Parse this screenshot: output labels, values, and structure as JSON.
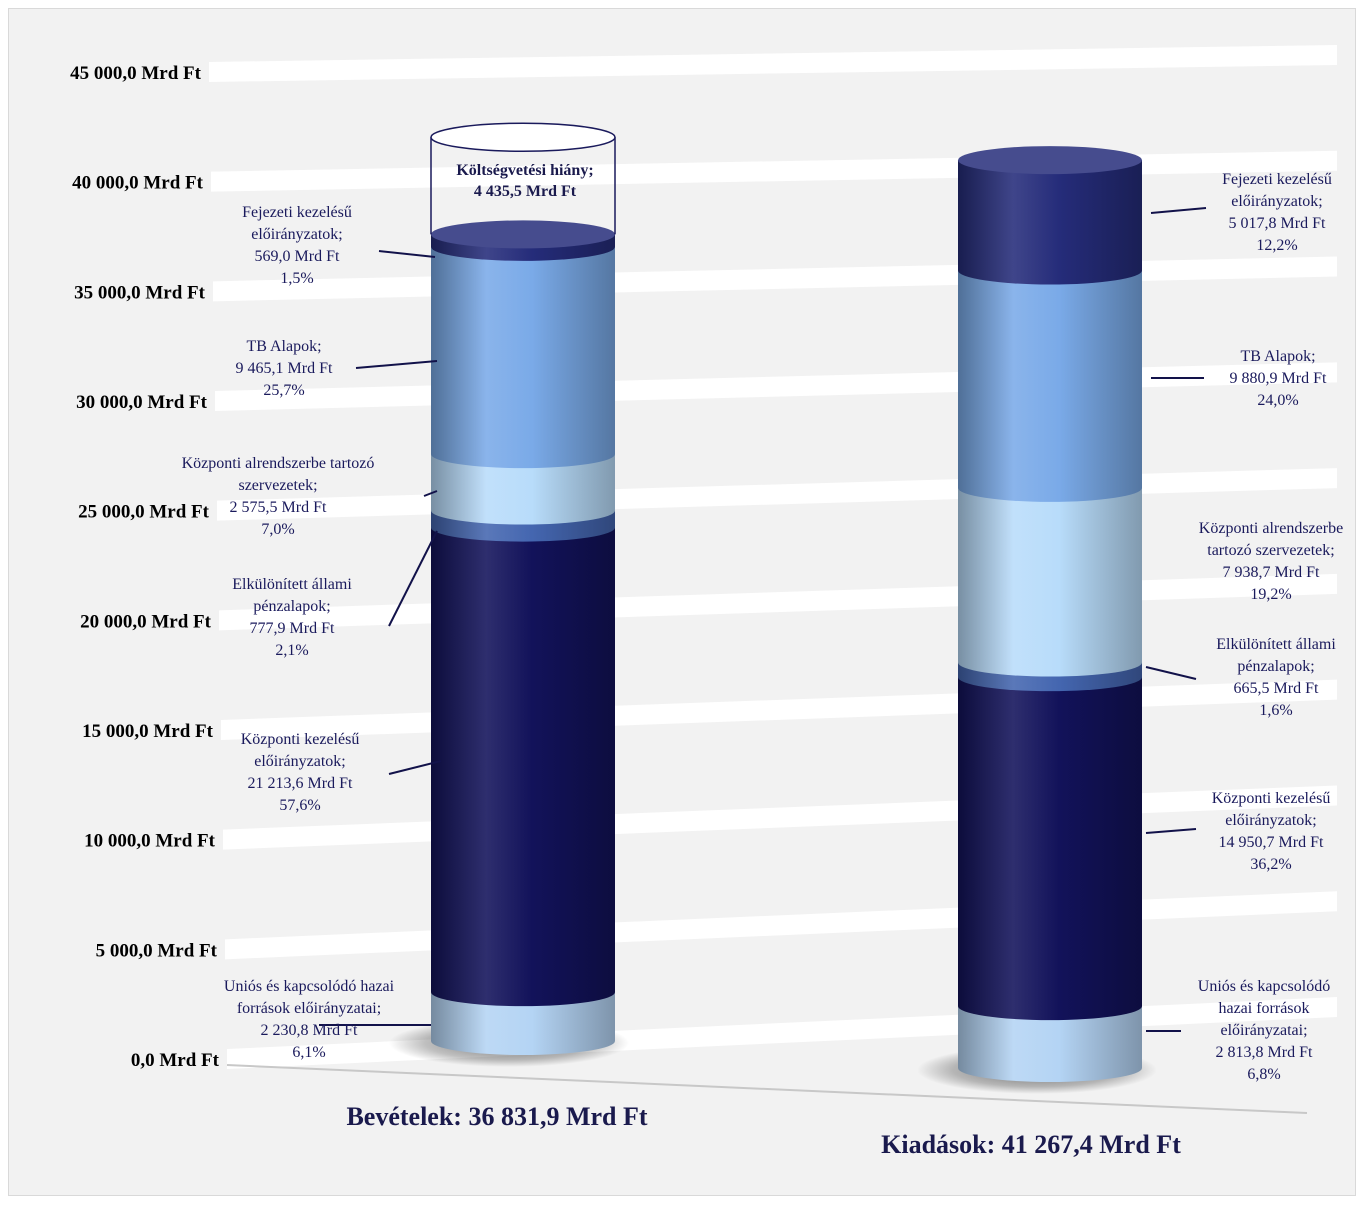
{
  "chart_data": {
    "type": "bar",
    "stacked": true,
    "style": "3d-cylinder",
    "unit": "Mrd Ft",
    "ylim": [
      0,
      45000
    ],
    "yticks": [
      "0,0 Mrd Ft",
      "5 000,0 Mrd Ft",
      "10 000,0 Mrd Ft",
      "15 000,0 Mrd Ft",
      "20 000,0 Mrd Ft",
      "25 000,0 Mrd Ft",
      "30 000,0 Mrd Ft",
      "35 000,0 Mrd Ft",
      "40 000,0 Mrd Ft",
      "45 000,0 Mrd Ft"
    ],
    "grid": true,
    "legend": "none",
    "columns": [
      {
        "title": "Bevételek: 36 831,9 Mrd Ft",
        "total": 36831.9,
        "segments": [
          {
            "label_lines": [
              "Uniós és kapcsolódó hazai",
              "források előirányzatai;",
              "2 230,8 Mrd Ft",
              "6,1%"
            ],
            "value": 2230.8,
            "percent": 6.1,
            "color": "#b4d4f4"
          },
          {
            "label_lines": [
              "Központi kezelésű",
              "előirányzatok;",
              "21 213,6 Mrd Ft",
              "57,6%"
            ],
            "value": 21213.6,
            "percent": 57.6,
            "color": "#12125a"
          },
          {
            "label_lines": [
              "Elkülönített állami",
              "pénzalapok;",
              "777,9 Mrd Ft",
              "2,1%"
            ],
            "value": 777.9,
            "percent": 2.1,
            "color": "#4466b0"
          },
          {
            "label_lines": [
              "Központi alrendszerbe tartozó",
              "szervezetek;",
              "2 575,5 Mrd Ft",
              "7,0%"
            ],
            "value": 2575.5,
            "percent": 7.0,
            "color": "#b8dcfa"
          },
          {
            "label_lines": [
              "TB Alapok;",
              "9 465,1 Mrd Ft",
              "25,7%"
            ],
            "value": 9465.1,
            "percent": 25.7,
            "color": "#7aaae8"
          },
          {
            "label_lines": [
              "Fejezeti kezelésű",
              "előirányzatok;",
              "569,0 Mrd Ft",
              "1,5%"
            ],
            "value": 569.0,
            "percent": 1.5,
            "color": "#252c7a"
          }
        ],
        "deficit": {
          "label_lines": [
            "Költségvetési hiány;",
            "4 435,5 Mrd Ft"
          ],
          "value": 4435.5
        }
      },
      {
        "title": "Kiadások: 41 267,4 Mrd Ft",
        "total": 41267.4,
        "segments": [
          {
            "label_lines": [
              "Uniós és kapcsolódó",
              "hazai források",
              "előirányzatai;",
              "2 813,8 Mrd Ft",
              "6,8%"
            ],
            "value": 2813.8,
            "percent": 6.8,
            "color": "#b4d4f4"
          },
          {
            "label_lines": [
              "Központi kezelésű",
              "előirányzatok;",
              "14 950,7 Mrd Ft",
              "36,2%"
            ],
            "value": 14950.7,
            "percent": 36.2,
            "color": "#12125a"
          },
          {
            "label_lines": [
              "Elkülönített állami",
              "pénzalapok;",
              "665,5 Mrd Ft",
              "1,6%"
            ],
            "value": 665.5,
            "percent": 1.6,
            "color": "#4466b0"
          },
          {
            "label_lines": [
              "Központi alrendszerbe",
              "tartozó szervezetek;",
              "7 938,7 Mrd Ft",
              "19,2%"
            ],
            "value": 7938.7,
            "percent": 19.2,
            "color": "#b8dcfa"
          },
          {
            "label_lines": [
              "TB Alapok;",
              "9 880,9 Mrd Ft",
              "24,0%"
            ],
            "value": 9880.9,
            "percent": 24.0,
            "color": "#7aaae8"
          },
          {
            "label_lines": [
              "Fejezeti kezelésű",
              "előirányzatok;",
              "5 017,8 Mrd Ft",
              "12,2%"
            ],
            "value": 5017.8,
            "percent": 12.2,
            "color": "#252c7a"
          }
        ]
      }
    ]
  }
}
